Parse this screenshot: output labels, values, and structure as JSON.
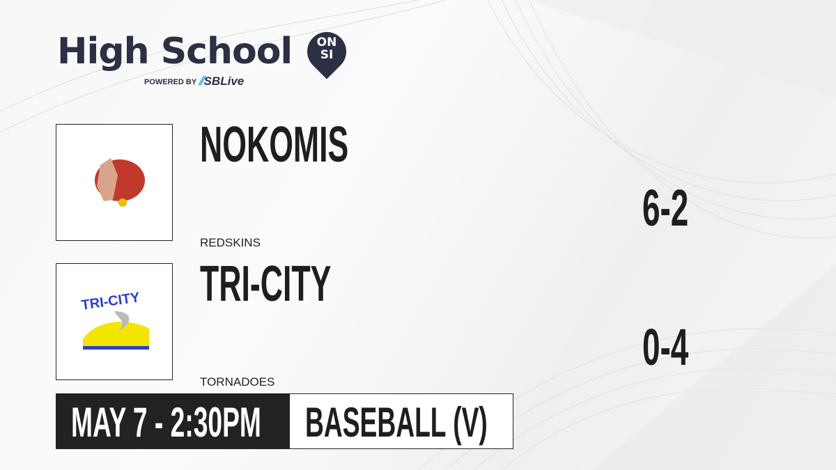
{
  "brand": {
    "title": "High School",
    "badge_line1": "ON",
    "badge_line2": "SI",
    "powered_by": "POWERED BY",
    "partner": "SBLive",
    "accent": "#2aa7df",
    "brand_color": "#2b3044"
  },
  "teams": [
    {
      "name": "NOKOMIS",
      "mascot": "REDSKINS",
      "score": "6-2",
      "logo": "chief-headdress-logo"
    },
    {
      "name": "TRI-CITY",
      "mascot": "TORNADOES",
      "score": "0-4",
      "logo": "tri-city-tornado-logo"
    }
  ],
  "game": {
    "datetime": "MAY 7 - 2:30PM",
    "sport": "BASEBALL (V)"
  }
}
